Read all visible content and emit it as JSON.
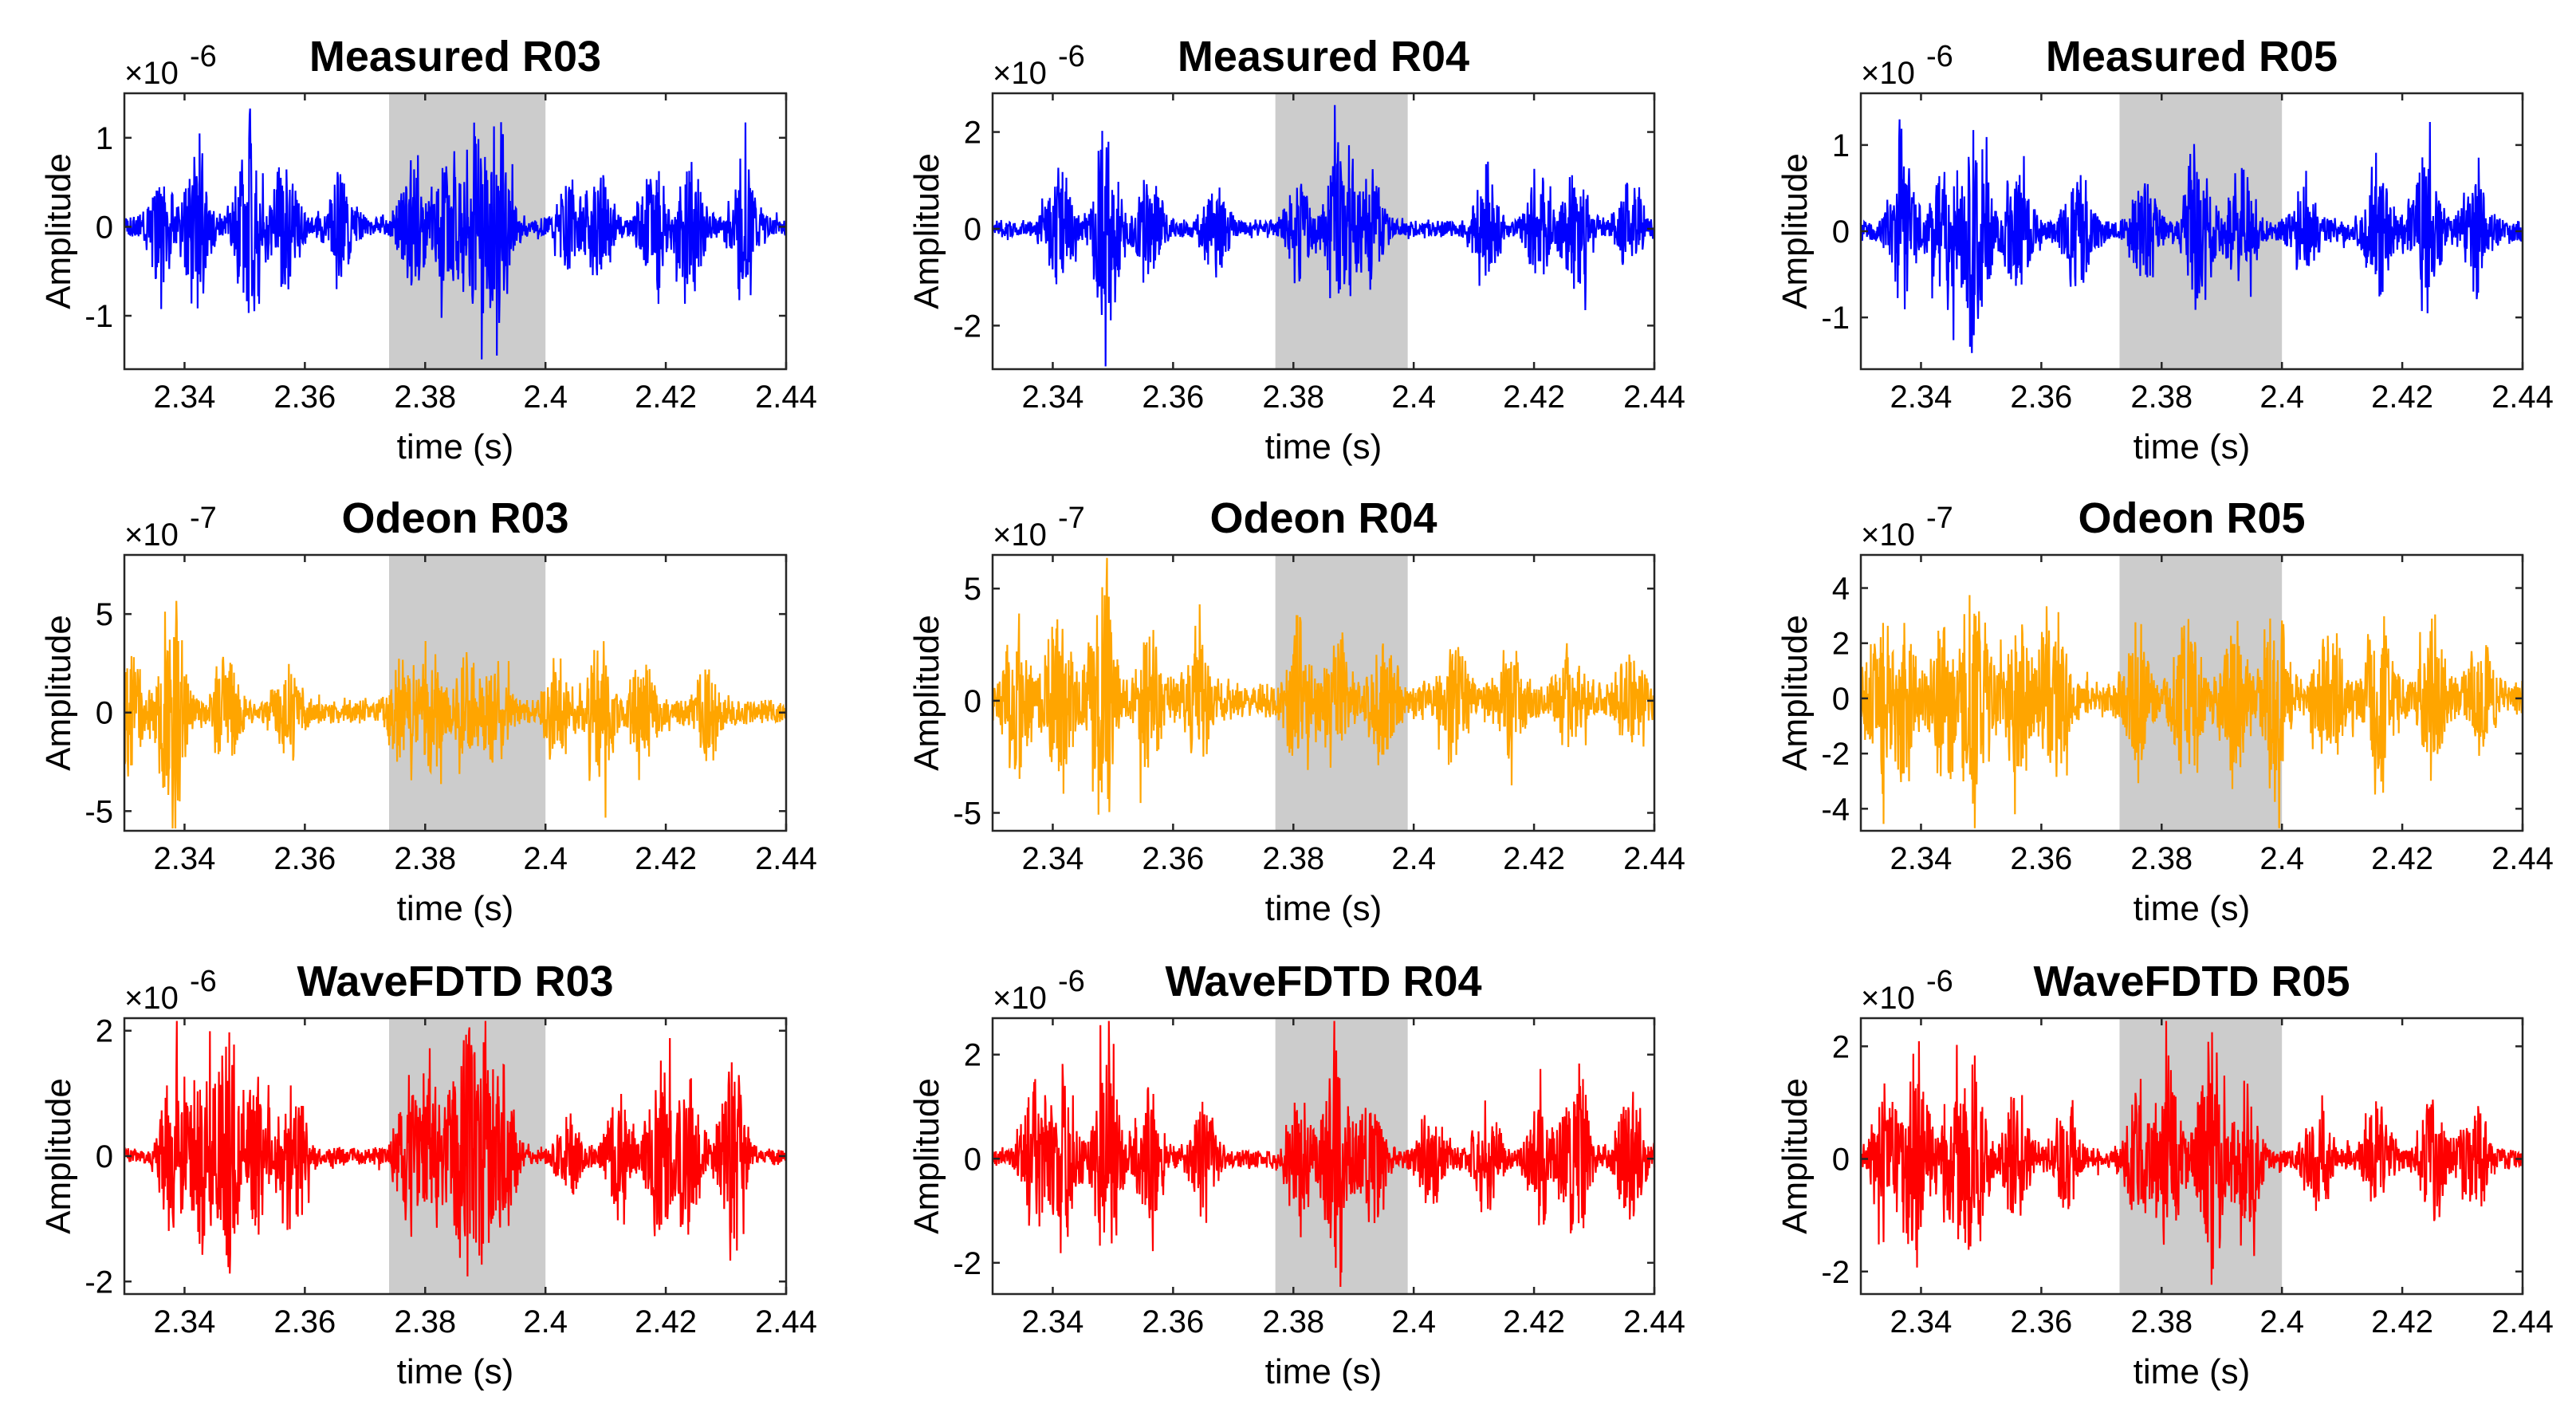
{
  "figure": {
    "xlabel": "time (s)",
    "ylabel": "Amplitude"
  },
  "chart_data": [
    {
      "type": "line",
      "title": "Measured R03",
      "color": "#0000ff",
      "exponent": "-6",
      "exponent_label": "×10",
      "xlim": [
        2.33,
        2.44
      ],
      "ylim": [
        -1.6,
        1.5
      ],
      "xticks": [
        2.34,
        2.36,
        2.38,
        2.4,
        2.42,
        2.44
      ],
      "xtick_labels": [
        "2.34",
        "2.36",
        "2.38",
        "2.4",
        "2.42",
        "2.44"
      ],
      "yticks": [
        -1,
        0,
        1
      ],
      "ytick_labels": [
        "-1",
        "0",
        "1"
      ],
      "shade": [
        2.374,
        2.4
      ],
      "xlabel": "time (s)",
      "ylabel": "Amplitude",
      "seed": 3,
      "noise": 0.12,
      "bursts": [
        [
          2.336,
          0.7
        ],
        [
          2.342,
          0.9
        ],
        [
          2.351,
          1.4
        ],
        [
          2.357,
          0.8
        ],
        [
          2.366,
          0.6
        ],
        [
          2.378,
          0.8
        ],
        [
          2.384,
          0.9
        ],
        [
          2.388,
          1.1
        ],
        [
          2.392,
          1.3
        ],
        [
          2.404,
          0.5
        ],
        [
          2.409,
          0.6
        ],
        [
          2.418,
          0.8
        ],
        [
          2.424,
          0.9
        ],
        [
          2.433,
          0.9
        ]
      ]
    },
    {
      "type": "line",
      "title": "Measured R04",
      "color": "#0000ff",
      "exponent": "-6",
      "exponent_label": "×10",
      "xlim": [
        2.33,
        2.44
      ],
      "ylim": [
        -2.9,
        2.8
      ],
      "xticks": [
        2.34,
        2.36,
        2.38,
        2.4,
        2.42,
        2.44
      ],
      "xtick_labels": [
        "2.34",
        "2.36",
        "2.38",
        "2.4",
        "2.42",
        "2.44"
      ],
      "yticks": [
        -2,
        0,
        2
      ],
      "ytick_labels": [
        "-2",
        "0",
        "2"
      ],
      "shade": [
        2.377,
        2.399
      ],
      "xlabel": "time (s)",
      "ylabel": "Amplitude",
      "seed": 4,
      "noise": 0.2,
      "bursts": [
        [
          2.341,
          1.2
        ],
        [
          2.349,
          2.7
        ],
        [
          2.356,
          1.3
        ],
        [
          2.367,
          1.0
        ],
        [
          2.381,
          1.2
        ],
        [
          2.388,
          2.6
        ],
        [
          2.393,
          1.1
        ],
        [
          2.412,
          1.4
        ],
        [
          2.421,
          1.2
        ],
        [
          2.427,
          1.8
        ],
        [
          2.436,
          1.1
        ]
      ]
    },
    {
      "type": "line",
      "title": "Measured R05",
      "color": "#0000ff",
      "exponent": "-6",
      "exponent_label": "×10",
      "xlim": [
        2.33,
        2.44
      ],
      "ylim": [
        -1.6,
        1.6
      ],
      "xticks": [
        2.34,
        2.36,
        2.38,
        2.4,
        2.42,
        2.44
      ],
      "xtick_labels": [
        "2.34",
        "2.36",
        "2.38",
        "2.4",
        "2.42",
        "2.44"
      ],
      "yticks": [
        -1,
        0,
        1
      ],
      "ytick_labels": [
        "-1",
        "0",
        "1"
      ],
      "shade": [
        2.373,
        2.4
      ],
      "xlabel": "time (s)",
      "ylabel": "Amplitude",
      "seed": 5,
      "noise": 0.15,
      "bursts": [
        [
          2.337,
          0.9
        ],
        [
          2.344,
          1.0
        ],
        [
          2.349,
          1.4
        ],
        [
          2.356,
          0.9
        ],
        [
          2.366,
          0.8
        ],
        [
          2.377,
          0.7
        ],
        [
          2.386,
          1.1
        ],
        [
          2.393,
          0.8
        ],
        [
          2.404,
          0.6
        ],
        [
          2.416,
          0.8
        ],
        [
          2.424,
          1.0
        ],
        [
          2.432,
          0.7
        ]
      ]
    },
    {
      "type": "line",
      "title": "Odeon R03",
      "color": "#ffa500",
      "exponent": "-7",
      "exponent_label": "×10",
      "xlim": [
        2.33,
        2.44
      ],
      "ylim": [
        -6.0,
        8.0
      ],
      "xticks": [
        2.34,
        2.36,
        2.38,
        2.4,
        2.42,
        2.44
      ],
      "xtick_labels": [
        "2.34",
        "2.36",
        "2.38",
        "2.4",
        "2.42",
        "2.44"
      ],
      "yticks": [
        -5,
        0,
        5
      ],
      "ytick_labels": [
        "-5",
        "0",
        "5"
      ],
      "shade": [
        2.374,
        2.4
      ],
      "xlabel": "time (s)",
      "ylabel": "Amplitude",
      "seed": 13,
      "noise": 0.7,
      "bursts": [
        [
          2.331,
          3.5
        ],
        [
          2.338,
          6.5
        ],
        [
          2.347,
          3.0
        ],
        [
          2.357,
          2.5
        ],
        [
          2.376,
          2.8
        ],
        [
          2.381,
          3.5
        ],
        [
          2.387,
          3.0
        ],
        [
          2.392,
          2.6
        ],
        [
          2.402,
          2.5
        ],
        [
          2.409,
          4.5
        ],
        [
          2.416,
          3.0
        ],
        [
          2.427,
          2.5
        ]
      ]
    },
    {
      "type": "line",
      "title": "Odeon R04",
      "color": "#ffa500",
      "exponent": "-7",
      "exponent_label": "×10",
      "xlim": [
        2.33,
        2.44
      ],
      "ylim": [
        -5.8,
        6.5
      ],
      "xticks": [
        2.34,
        2.36,
        2.38,
        2.4,
        2.42,
        2.44
      ],
      "xtick_labels": [
        "2.34",
        "2.36",
        "2.38",
        "2.4",
        "2.42",
        "2.44"
      ],
      "yticks": [
        -5,
        0,
        5
      ],
      "ytick_labels": [
        "-5",
        "0",
        "5"
      ],
      "shade": [
        2.377,
        2.399
      ],
      "xlabel": "time (s)",
      "ylabel": "Amplitude",
      "seed": 14,
      "noise": 0.9,
      "bursts": [
        [
          2.334,
          3.5
        ],
        [
          2.341,
          4.0
        ],
        [
          2.348,
          6.2
        ],
        [
          2.356,
          3.0
        ],
        [
          2.364,
          3.0
        ],
        [
          2.381,
          3.5
        ],
        [
          2.387,
          3.2
        ],
        [
          2.395,
          3.0
        ],
        [
          2.407,
          2.5
        ],
        [
          2.416,
          2.0
        ],
        [
          2.426,
          2.0
        ],
        [
          2.436,
          2.0
        ]
      ]
    },
    {
      "type": "line",
      "title": "Odeon R05",
      "color": "#ffa500",
      "exponent": "-7",
      "exponent_label": "×10",
      "xlim": [
        2.33,
        2.44
      ],
      "ylim": [
        -4.8,
        5.2
      ],
      "xticks": [
        2.34,
        2.36,
        2.38,
        2.4,
        2.42,
        2.44
      ],
      "xtick_labels": [
        "2.34",
        "2.36",
        "2.38",
        "2.4",
        "2.42",
        "2.44"
      ],
      "yticks": [
        -4,
        -2,
        0,
        2,
        4
      ],
      "ytick_labels": [
        "-4",
        "-2",
        "0",
        "2",
        "4"
      ],
      "shade": [
        2.373,
        2.4
      ],
      "xlabel": "time (s)",
      "ylabel": "Amplitude",
      "seed": 15,
      "noise": 0.8,
      "bursts": [
        [
          2.333,
          2.5
        ],
        [
          2.337,
          3.0
        ],
        [
          2.344,
          3.0
        ],
        [
          2.349,
          4.8
        ],
        [
          2.356,
          3.0
        ],
        [
          2.362,
          3.2
        ],
        [
          2.376,
          2.5
        ],
        [
          2.384,
          3.0
        ],
        [
          2.392,
          2.8
        ],
        [
          2.399,
          3.2
        ],
        [
          2.408,
          2.5
        ],
        [
          2.416,
          3.5
        ],
        [
          2.425,
          2.5
        ],
        [
          2.433,
          2.0
        ]
      ]
    },
    {
      "type": "line",
      "title": "WaveFDTD R03",
      "color": "#ff0000",
      "exponent": "-6",
      "exponent_label": "×10",
      "xlim": [
        2.33,
        2.44
      ],
      "ylim": [
        -2.2,
        2.2
      ],
      "xticks": [
        2.34,
        2.36,
        2.38,
        2.4,
        2.42,
        2.44
      ],
      "xtick_labels": [
        "2.34",
        "2.36",
        "2.38",
        "2.4",
        "2.42",
        "2.44"
      ],
      "yticks": [
        -2,
        0,
        2
      ],
      "ytick_labels": [
        "-2",
        "0",
        "2"
      ],
      "shade": [
        2.374,
        2.4
      ],
      "xlabel": "time (s)",
      "ylabel": "Amplitude",
      "seed": 23,
      "noise": 0.15,
      "bursts": [
        [
          2.338,
          1.6
        ],
        [
          2.343,
          1.8
        ],
        [
          2.347,
          2.0
        ],
        [
          2.352,
          1.4
        ],
        [
          2.358,
          1.5
        ],
        [
          2.377,
          1.2
        ],
        [
          2.381,
          1.6
        ],
        [
          2.386,
          2.1
        ],
        [
          2.389,
          1.8
        ],
        [
          2.393,
          1.4
        ],
        [
          2.404,
          0.6
        ],
        [
          2.412,
          1.1
        ],
        [
          2.419,
          1.7
        ],
        [
          2.424,
          1.4
        ],
        [
          2.431,
          1.8
        ]
      ]
    },
    {
      "type": "line",
      "title": "WaveFDTD R04",
      "color": "#ff0000",
      "exponent": "-6",
      "exponent_label": "×10",
      "xlim": [
        2.33,
        2.44
      ],
      "ylim": [
        -2.6,
        2.7
      ],
      "xticks": [
        2.34,
        2.36,
        2.38,
        2.4,
        2.42,
        2.44
      ],
      "xtick_labels": [
        "2.34",
        "2.36",
        "2.38",
        "2.4",
        "2.42",
        "2.44"
      ],
      "yticks": [
        -2,
        0,
        2
      ],
      "ytick_labels": [
        "-2",
        "0",
        "2"
      ],
      "shade": [
        2.377,
        2.399
      ],
      "xlabel": "time (s)",
      "ylabel": "Amplitude",
      "seed": 24,
      "noise": 0.2,
      "bursts": [
        [
          2.337,
          1.6
        ],
        [
          2.342,
          1.8
        ],
        [
          2.349,
          2.3
        ],
        [
          2.356,
          1.4
        ],
        [
          2.365,
          1.2
        ],
        [
          2.381,
          1.4
        ],
        [
          2.387,
          2.5
        ],
        [
          2.393,
          1.5
        ],
        [
          2.403,
          0.9
        ],
        [
          2.412,
          1.2
        ],
        [
          2.421,
          1.3
        ],
        [
          2.427,
          2.0
        ],
        [
          2.436,
          1.4
        ]
      ]
    },
    {
      "type": "line",
      "title": "WaveFDTD R05",
      "color": "#ff0000",
      "exponent": "-6",
      "exponent_label": "×10",
      "xlim": [
        2.33,
        2.44
      ],
      "ylim": [
        -2.4,
        2.5
      ],
      "xticks": [
        2.34,
        2.36,
        2.38,
        2.4,
        2.42,
        2.44
      ],
      "xtick_labels": [
        "2.34",
        "2.36",
        "2.38",
        "2.4",
        "2.42",
        "2.44"
      ],
      "yticks": [
        -2,
        0,
        2
      ],
      "ytick_labels": [
        "-2",
        "0",
        "2"
      ],
      "shade": [
        2.373,
        2.4
      ],
      "xlabel": "time (s)",
      "ylabel": "Amplitude",
      "seed": 25,
      "noise": 0.2,
      "bursts": [
        [
          2.334,
          1.4
        ],
        [
          2.339,
          2.2
        ],
        [
          2.345,
          1.4
        ],
        [
          2.349,
          1.8
        ],
        [
          2.356,
          1.3
        ],
        [
          2.364,
          1.0
        ],
        [
          2.376,
          1.4
        ],
        [
          2.381,
          1.8
        ],
        [
          2.388,
          2.4
        ],
        [
          2.394,
          1.7
        ],
        [
          2.406,
          0.9
        ],
        [
          2.416,
          1.2
        ],
        [
          2.425,
          1.3
        ],
        [
          2.432,
          1.3
        ]
      ]
    }
  ]
}
